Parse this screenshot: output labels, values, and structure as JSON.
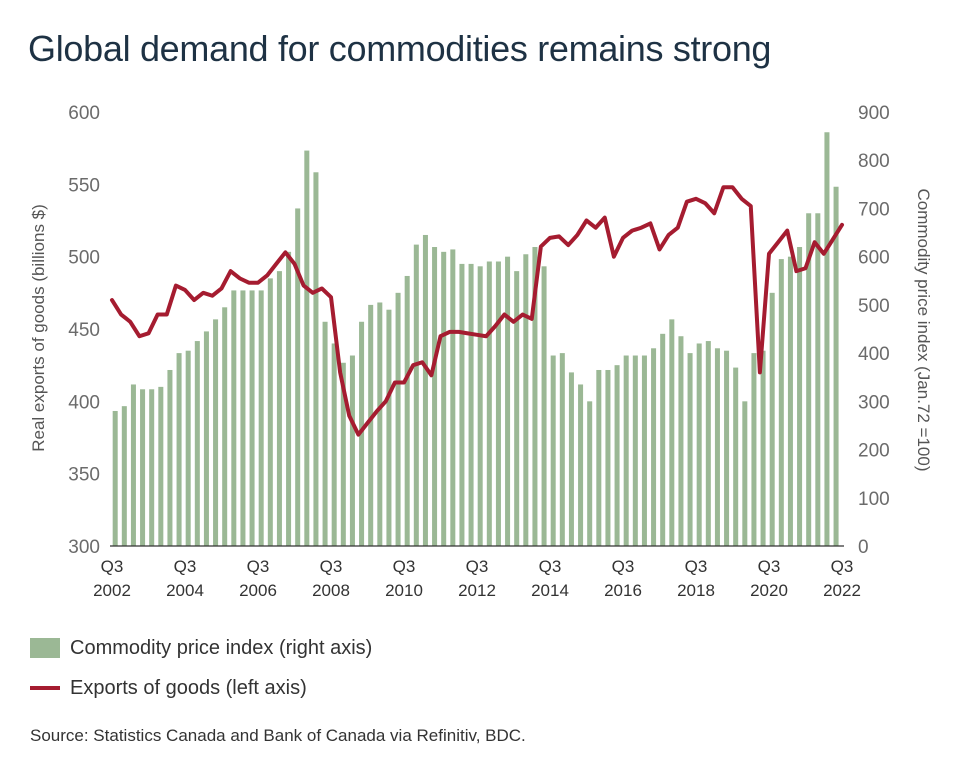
{
  "title": "Global demand for commodities remains strong",
  "source": "Source: Statistics Canada and Bank of Canada via Refinitiv, BDC.",
  "legend": {
    "bars": "Commodity price index (right axis)",
    "line": "Exports of goods (left axis)"
  },
  "colors": {
    "bars": "#9bb895",
    "line": "#a51c30",
    "title": "#1e3244"
  },
  "chart_data": {
    "type": "bar+line",
    "grid": false,
    "legend_position": "bottom-left",
    "y_left": {
      "label": "Real exports of goods (billions $)",
      "range": [
        300,
        600
      ],
      "ticks": [
        "300",
        "350",
        "400",
        "450",
        "500",
        "550",
        "600"
      ]
    },
    "y_right": {
      "label": "Commodity price index (Jan.72 =100)",
      "range": [
        0,
        900
      ],
      "ticks": [
        "0",
        "100",
        "200",
        "300",
        "400",
        "500",
        "600",
        "700",
        "800",
        "900"
      ]
    },
    "x_range": [
      "2002Q3",
      "2022Q3"
    ],
    "x_ticks": [
      {
        "q": "Q3",
        "y": "2002"
      },
      {
        "q": "Q3",
        "y": "2004"
      },
      {
        "q": "Q3",
        "y": "2006"
      },
      {
        "q": "Q3",
        "y": "2008"
      },
      {
        "q": "Q3",
        "y": "2010"
      },
      {
        "q": "Q3",
        "y": "2012"
      },
      {
        "q": "Q3",
        "y": "2014"
      },
      {
        "q": "Q3",
        "y": "2016"
      },
      {
        "q": "Q3",
        "y": "2018"
      },
      {
        "q": "Q3",
        "y": "2020"
      },
      {
        "q": "Q3",
        "y": "2022"
      }
    ],
    "series": [
      {
        "name": "Commodity price index (right axis)",
        "type": "bar",
        "axis": "right",
        "values": [
          280,
          290,
          335,
          325,
          325,
          330,
          365,
          400,
          405,
          425,
          445,
          470,
          495,
          530,
          530,
          530,
          530,
          555,
          570,
          610,
          700,
          820,
          775,
          465,
          420,
          380,
          395,
          465,
          500,
          505,
          490,
          525,
          560,
          625,
          645,
          620,
          610,
          615,
          585,
          585,
          580,
          590,
          590,
          600,
          570,
          605,
          620,
          580,
          395,
          400,
          360,
          335,
          300,
          365,
          365,
          375,
          395,
          395,
          395,
          410,
          440,
          470,
          435,
          400,
          420,
          425,
          410,
          405,
          370,
          300,
          400,
          405,
          525,
          595,
          600,
          620,
          690,
          690,
          858,
          745
        ],
        "quarters": [
          "2002Q3",
          "2002Q4",
          "2003Q1",
          "2003Q2",
          "2003Q3",
          "2003Q4",
          "2004Q1",
          "2004Q2",
          "2004Q3",
          "2004Q4",
          "2005Q1",
          "2005Q2",
          "2005Q3",
          "2005Q4",
          "2006Q1",
          "2006Q2",
          "2006Q3",
          "2006Q4",
          "2007Q1",
          "2007Q2",
          "2007Q3",
          "2007Q4",
          "2008Q1",
          "2008Q2",
          "2008Q3",
          "2008Q4",
          "2009Q1",
          "2009Q2",
          "2009Q3",
          "2009Q4",
          "2010Q1",
          "2010Q2",
          "2010Q3",
          "2010Q4",
          "2011Q1",
          "2011Q2",
          "2011Q3",
          "2011Q4",
          "2012Q1",
          "2012Q2",
          "2012Q3",
          "2012Q4",
          "2013Q1",
          "2013Q2",
          "2013Q3",
          "2013Q4",
          "2014Q1",
          "2014Q2",
          "2014Q3",
          "2014Q4",
          "2015Q1",
          "2015Q2",
          "2015Q3",
          "2015Q4",
          "2016Q1",
          "2016Q2",
          "2016Q3",
          "2016Q4",
          "2017Q1",
          "2017Q2",
          "2017Q3",
          "2017Q4",
          "2018Q1",
          "2018Q2",
          "2018Q3",
          "2018Q4",
          "2019Q1",
          "2019Q2",
          "2019Q3",
          "2019Q4",
          "2020Q1",
          "2020Q2",
          "2020Q3",
          "2020Q4",
          "2021Q1",
          "2021Q2",
          "2021Q3",
          "2021Q4",
          "2022Q1",
          "2022Q2"
        ]
      },
      {
        "name": "Exports of goods (left axis)",
        "type": "line",
        "axis": "left",
        "x": [
          "2002Q3",
          "2002Q4",
          "2003Q1",
          "2003Q2",
          "2003Q3",
          "2003Q4",
          "2004Q1",
          "2004Q2",
          "2004Q3",
          "2004Q4",
          "2005Q1",
          "2005Q2",
          "2005Q3",
          "2005Q4",
          "2006Q1",
          "2006Q2",
          "2006Q3",
          "2006Q4",
          "2007Q1",
          "2007Q2",
          "2007Q3",
          "2007Q4",
          "2008Q1",
          "2008Q2",
          "2008Q3",
          "2008Q4",
          "2009Q1",
          "2009Q2",
          "2009Q3",
          "2009Q4",
          "2010Q1",
          "2010Q2",
          "2010Q3",
          "2010Q4",
          "2011Q1",
          "2011Q2",
          "2011Q3",
          "2011Q4",
          "2012Q1",
          "2012Q2",
          "2012Q3",
          "2012Q4",
          "2013Q1",
          "2013Q2",
          "2013Q3",
          "2013Q4",
          "2014Q1",
          "2014Q2",
          "2014Q3",
          "2014Q4",
          "2015Q1",
          "2015Q2",
          "2015Q3",
          "2015Q4",
          "2016Q1",
          "2016Q2",
          "2016Q3",
          "2016Q4",
          "2017Q1",
          "2017Q2",
          "2017Q3",
          "2017Q4",
          "2018Q1",
          "2018Q2",
          "2018Q3",
          "2018Q4",
          "2019Q1",
          "2019Q2",
          "2019Q3",
          "2019Q4",
          "2020Q1",
          "2020Q2",
          "2020Q3",
          "2020Q4",
          "2021Q1",
          "2021Q2",
          "2021Q3",
          "2021Q4",
          "2022Q1",
          "2022Q2",
          "2022Q3"
        ],
        "values": [
          470,
          460,
          455,
          445,
          447,
          460,
          460,
          480,
          477,
          470,
          475,
          473,
          478,
          490,
          485,
          482,
          482,
          487,
          495,
          503,
          495,
          480,
          475,
          478,
          472,
          420,
          390,
          377,
          385,
          393,
          400,
          413,
          413,
          425,
          427,
          418,
          445,
          448,
          448,
          447,
          446,
          445,
          452,
          460,
          455,
          460,
          457,
          507,
          513,
          514,
          508,
          515,
          525,
          520,
          527,
          500,
          513,
          518,
          520,
          523,
          505,
          515,
          520,
          538,
          540,
          537,
          530,
          548,
          548,
          540,
          535,
          420,
          502,
          510,
          518,
          490,
          492,
          510,
          502,
          512,
          522
        ]
      }
    ]
  }
}
